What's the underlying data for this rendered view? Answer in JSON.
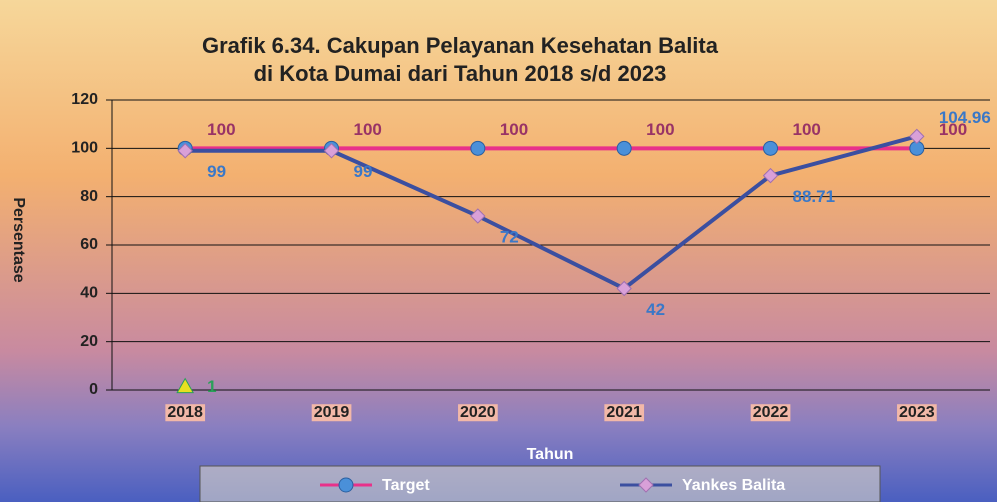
{
  "chart_data": {
    "type": "line",
    "title": [
      "Grafik 6.34. Cakupan Pelayanan Kesehatan Balita",
      "di Kota Dumai dari Tahun 2018  s/d 2023"
    ],
    "x_label": "Tahun",
    "y_label": "Persentase",
    "categories": [
      "2018",
      "2019",
      "2020",
      "2021",
      "2022",
      "2023"
    ],
    "series": [
      {
        "name": "Target",
        "color": "#e8318a",
        "marker_color": "#4a90d9",
        "label_color": "#993366",
        "marker": "circle",
        "values": [
          100,
          100,
          100,
          100,
          100,
          100
        ]
      },
      {
        "name": "Yankes Balita",
        "color": "#3b4fa0",
        "marker_color": "#d9a0d8",
        "label_color": "#3a78c8",
        "marker": "diamond",
        "values": [
          99,
          99,
          72,
          42,
          88.71,
          104.96
        ]
      },
      {
        "color": "#2aa05a",
        "marker_color": "#e8e020",
        "label_color": "#2aa05a",
        "marker": "triangle",
        "values": [
          1,
          null,
          null,
          null,
          null,
          null
        ]
      }
    ],
    "ylim": [
      0,
      120
    ],
    "yticks": [
      0,
      20,
      40,
      60,
      80,
      100,
      120
    ],
    "grid": true
  }
}
